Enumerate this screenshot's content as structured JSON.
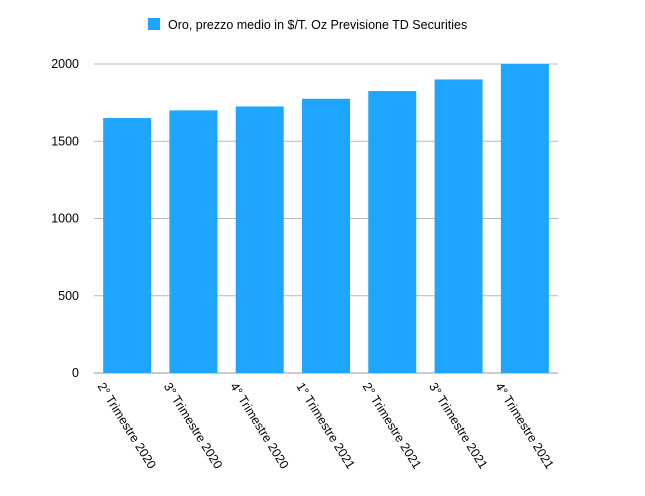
{
  "chart_data": {
    "type": "bar",
    "title": "",
    "xlabel": "",
    "ylabel": "",
    "legend": {
      "placement": "top",
      "label": "Oro, prezzo medio in $/T. Oz Previsione TD Securities"
    },
    "grid": true,
    "ylim": [
      0,
      2000
    ],
    "yticks": [
      0,
      500,
      1000,
      1500,
      2000
    ],
    "categories": [
      "2° Trimestre 2020",
      "3° Trimestre 2020",
      "4° Trimestre 2020",
      "1° Trimestre 2021",
      "2° Trimestre 2021",
      "3° Trimestre 2021",
      "4° Trimestre 2021"
    ],
    "series": [
      {
        "name": "Oro, prezzo medio in $/T. Oz Previsione TD Securities",
        "color": "#1ea6ff",
        "values": [
          1650,
          1700,
          1725,
          1775,
          1825,
          1900,
          2000
        ]
      }
    ]
  }
}
